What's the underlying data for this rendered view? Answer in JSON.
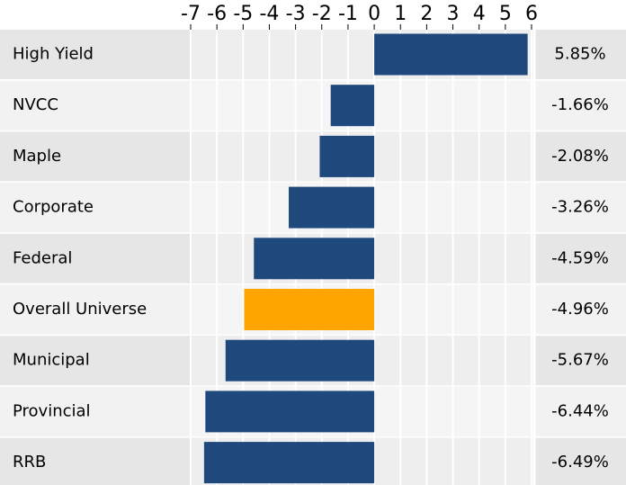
{
  "chart_data": {
    "type": "bar",
    "orientation": "horizontal",
    "categories": [
      "High Yield",
      "NVCC",
      "Maple",
      "Corporate",
      "Federal",
      "Overall Universe",
      "Municipal",
      "Provincial",
      "RRB"
    ],
    "values": [
      5.85,
      -1.66,
      -2.08,
      -3.26,
      -4.59,
      -4.96,
      -5.67,
      -6.44,
      -6.49
    ],
    "value_labels": [
      "5.85%",
      "-1.66%",
      "-2.08%",
      "-3.26%",
      "-4.59%",
      "-4.96%",
      "-5.67%",
      "-6.44%",
      "-6.49%"
    ],
    "colors": [
      "#1f497d",
      "#1f497d",
      "#1f497d",
      "#1f497d",
      "#1f497d",
      "#ffa500",
      "#1f497d",
      "#1f497d",
      "#1f497d"
    ],
    "xlim": [
      -7,
      6
    ],
    "xticks": [
      -7,
      -6,
      -5,
      -4,
      -3,
      -2,
      -1,
      0,
      1,
      2,
      3,
      4,
      5,
      6
    ],
    "grid": true
  }
}
